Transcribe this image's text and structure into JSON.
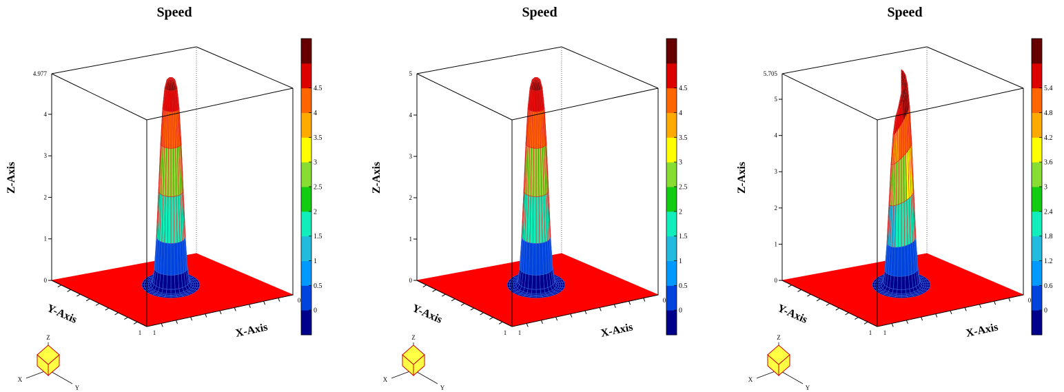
{
  "chart_data": [
    {
      "type": "surface",
      "title": "Speed",
      "xlabel": "X-Axis",
      "ylabel": "Y-Axis",
      "zlabel": "Z-Axis",
      "zmax_label": "4.977",
      "zticks": [
        "0",
        "1",
        "2",
        "3",
        "4"
      ],
      "ytick": "1",
      "xtick_start": "1",
      "xtick_end": "0",
      "peak": 4.977,
      "colorbar_ticks": [
        "0",
        "0.5",
        "1",
        "1.5",
        "2",
        "2.5",
        "3",
        "3.5",
        "4",
        "4.5"
      ]
    },
    {
      "type": "surface",
      "title": "Speed",
      "xlabel": "X-Axis",
      "ylabel": "Y-Axis",
      "zlabel": "Z-Axis",
      "zmax_label": "5",
      "zticks": [
        "0",
        "1",
        "2",
        "3",
        "4"
      ],
      "ytick": "1",
      "xtick_start": "1",
      "xtick_end": "0",
      "peak": 5,
      "colorbar_ticks": [
        "0",
        "0.5",
        "1",
        "1.5",
        "2",
        "2.5",
        "3",
        "3.5",
        "4",
        "4.5"
      ]
    },
    {
      "type": "surface",
      "title": "Speed",
      "xlabel": "X-Axis",
      "ylabel": "Y-Axis",
      "zlabel": "Z-Axis",
      "zmax_label": "5.705",
      "zticks": [
        "0",
        "1",
        "2",
        "3",
        "4",
        "5"
      ],
      "ytick": "1",
      "xtick_start": "1",
      "xtick_end": "0",
      "peak": 5.705,
      "colorbar_ticks": [
        "0",
        "0.6",
        "1.2",
        "1.8",
        "2.4",
        "3",
        "3.6",
        "4.2",
        "4.8",
        "5.4"
      ]
    }
  ],
  "axis_gizmo": {
    "x": "X",
    "y": "Y",
    "z": "Z"
  },
  "colors": {
    "colorbar": [
      "#00008b",
      "#0044dd",
      "#0099ff",
      "#22bbdd",
      "#11eebb",
      "#11cc11",
      "#88dd33",
      "#ffff00",
      "#ffaa00",
      "#ff6600",
      "#dd0000",
      "#660000"
    ],
    "surface_wire": "#dd2222",
    "floor": "#ff0000",
    "gizmo_fill": "#ffff44",
    "gizmo_stroke": "#cc0000"
  }
}
